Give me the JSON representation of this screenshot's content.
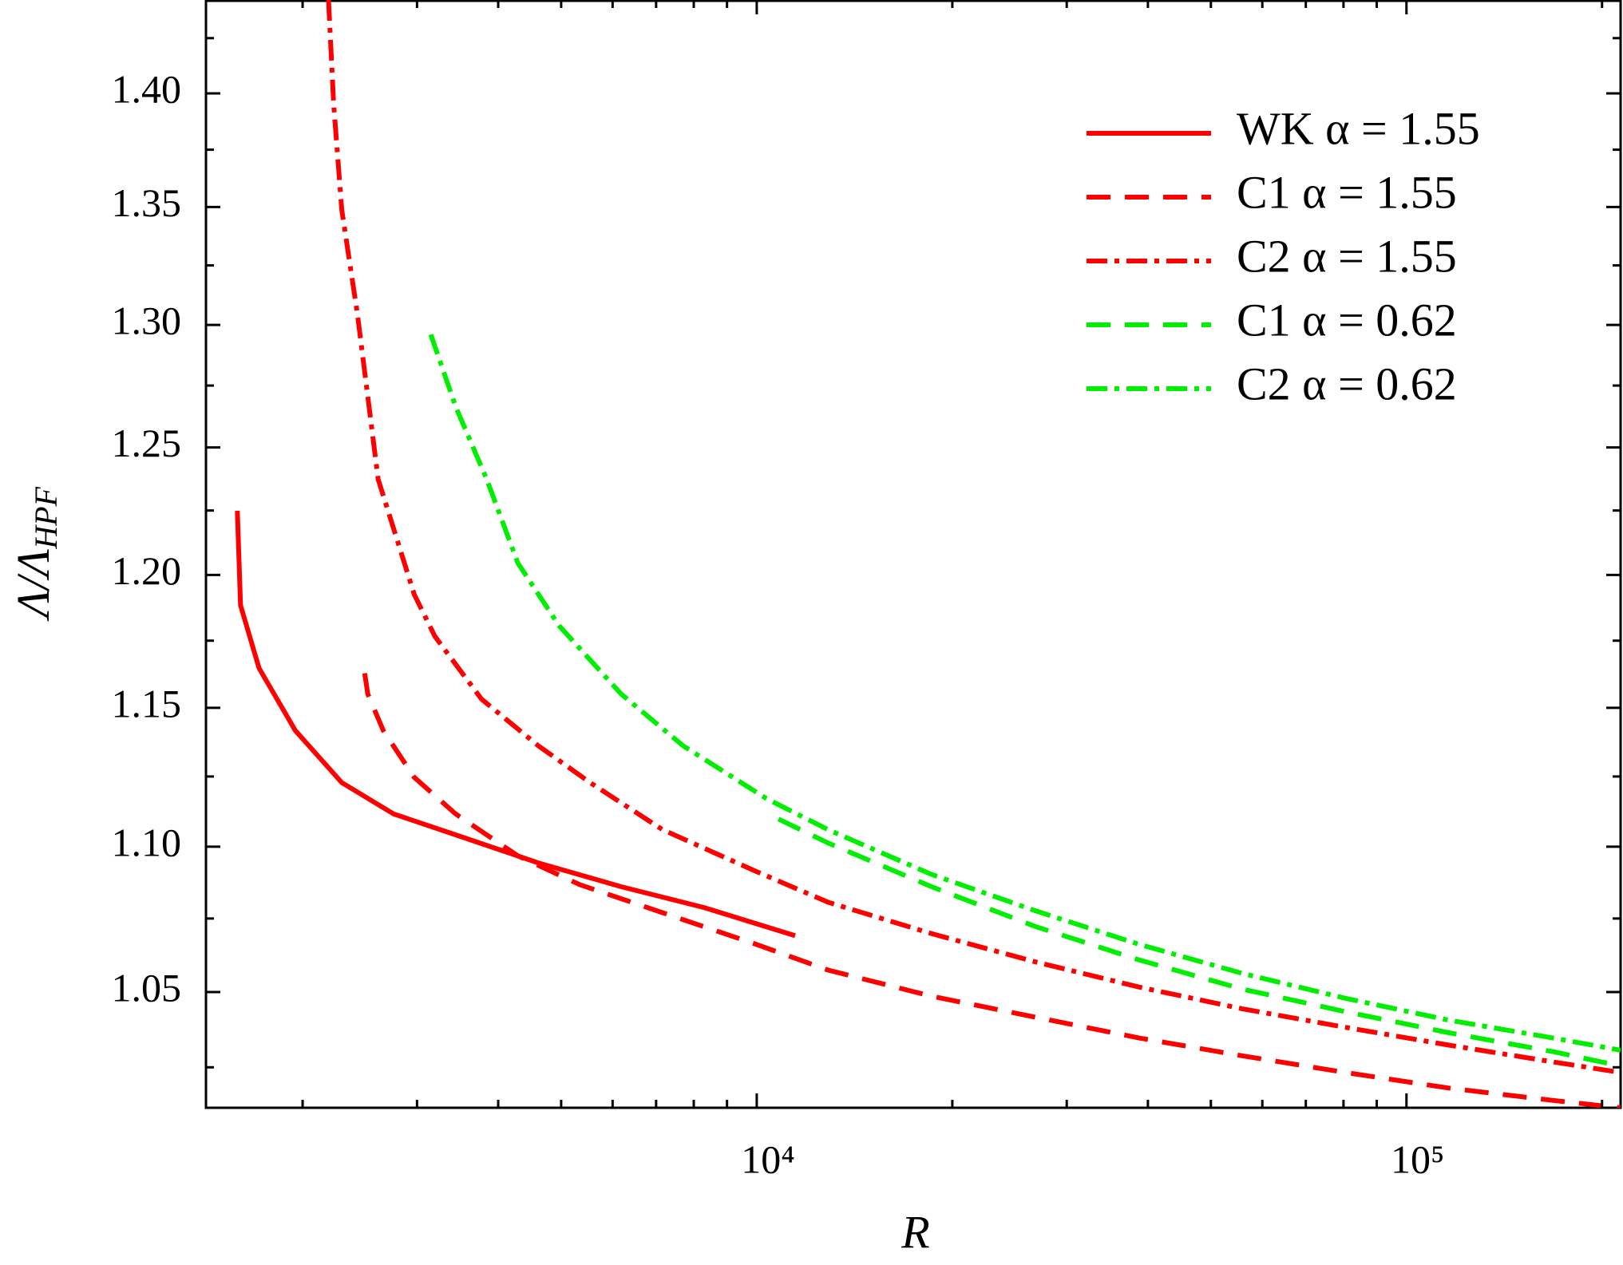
{
  "chart_data": {
    "type": "line",
    "x_label": "R",
    "y_label": {
      "text": "Λ/Λ",
      "subscript": "HPF"
    },
    "xscale": "log",
    "yscale": "log",
    "xlim": [
      1420,
      213600
    ],
    "ylim": [
      1.0118,
      1.4425
    ],
    "xticks": [
      {
        "value": 10000,
        "label": "10⁴"
      },
      {
        "value": 100000,
        "label": "10⁵"
      }
    ],
    "xminorticks": [
      2000,
      3000,
      4000,
      5000,
      6000,
      7000,
      8000,
      9000,
      20000,
      30000,
      40000,
      50000,
      60000,
      70000,
      80000,
      90000,
      200000
    ],
    "yticks": [
      1.05,
      {
        "value": 1.1,
        "label": "1.10"
      },
      1.15,
      {
        "value": 1.2,
        "label": "1.20"
      },
      1.25,
      {
        "value": 1.3,
        "label": "1.30"
      },
      1.35,
      {
        "value": 1.4,
        "label": "1.40"
      }
    ],
    "yminorticks": [
      1.025,
      1.075,
      1.125,
      1.175,
      1.225,
      1.275,
      1.325,
      1.375,
      1.425
    ],
    "legend": "upper right",
    "series": [
      {
        "name": "WK α = 1.55",
        "color": "#ff0000",
        "dash": "solid",
        "x": [
          1587,
          1605,
          1714,
          1949,
          2298,
          2761,
          3440,
          4613,
          6185,
          8294,
          11456
        ],
        "values": [
          1.2249,
          1.1884,
          1.1647,
          1.1417,
          1.1228,
          1.1116,
          1.1042,
          1.0943,
          1.086,
          1.0788,
          1.0691
        ]
      },
      {
        "name": "C1 α = 1.55",
        "color": "#ff0000",
        "dash": "dashed",
        "x": [
          2492,
          2520,
          2662,
          2971,
          3440,
          4288,
          5342,
          7163,
          9963,
          12880,
          18580,
          26810,
          38690,
          55830,
          80540,
          116200,
          167700,
          213600
        ],
        "values": [
          1.1628,
          1.1551,
          1.1417,
          1.1247,
          1.1116,
          1.0968,
          1.0867,
          1.077,
          1.0662,
          1.0574,
          1.0486,
          1.0416,
          1.0347,
          1.0288,
          1.0233,
          1.0182,
          1.0142,
          1.0118
        ]
      },
      {
        "name": "C2 α = 1.55",
        "color": "#ff0000",
        "dash": "dashdot",
        "x": [
          2192,
          2233,
          2298,
          2429,
          2614,
          2971,
          3197,
          3771,
          4613,
          5541,
          7163,
          9963,
          12880,
          18580,
          26810,
          38690,
          55830,
          80540,
          116200,
          167700,
          213600
        ],
        "values": [
          1.4425,
          1.3949,
          1.3488,
          1.3046,
          1.2373,
          1.1925,
          1.1766,
          1.1532,
          1.1361,
          1.1228,
          1.106,
          1.0914,
          1.0806,
          1.0698,
          1.0602,
          1.0517,
          1.0444,
          1.0382,
          1.0323,
          1.0268,
          1.0233
        ]
      },
      {
        "name": "C1 α = 0.62",
        "color": "#00ee00",
        "dash": "dashed",
        "x": [
          10800,
          12880,
          18580,
          26810,
          38690,
          55830,
          80540,
          116200,
          167700,
          213600
        ],
        "values": [
          1.1098,
          1.1013,
          1.086,
          1.0723,
          1.0609,
          1.051,
          1.0434,
          1.0364,
          1.0302,
          1.0254
        ]
      },
      {
        "name": "C2 α = 0.62",
        "color": "#00ee00",
        "dash": "dashdot",
        "x": [
          3150,
          3440,
          3841,
          4288,
          4965,
          6185,
          7707,
          10330,
          12880,
          18580,
          26810,
          38690,
          55830,
          80540,
          116200,
          167700,
          213600
        ],
        "values": [
          1.296,
          1.2665,
          1.2373,
          1.2046,
          1.1806,
          1.1551,
          1.1361,
          1.1172,
          1.106,
          1.0903,
          1.0777,
          1.0662,
          1.0563,
          1.0479,
          1.0406,
          1.0347,
          1.0306
        ]
      }
    ]
  }
}
